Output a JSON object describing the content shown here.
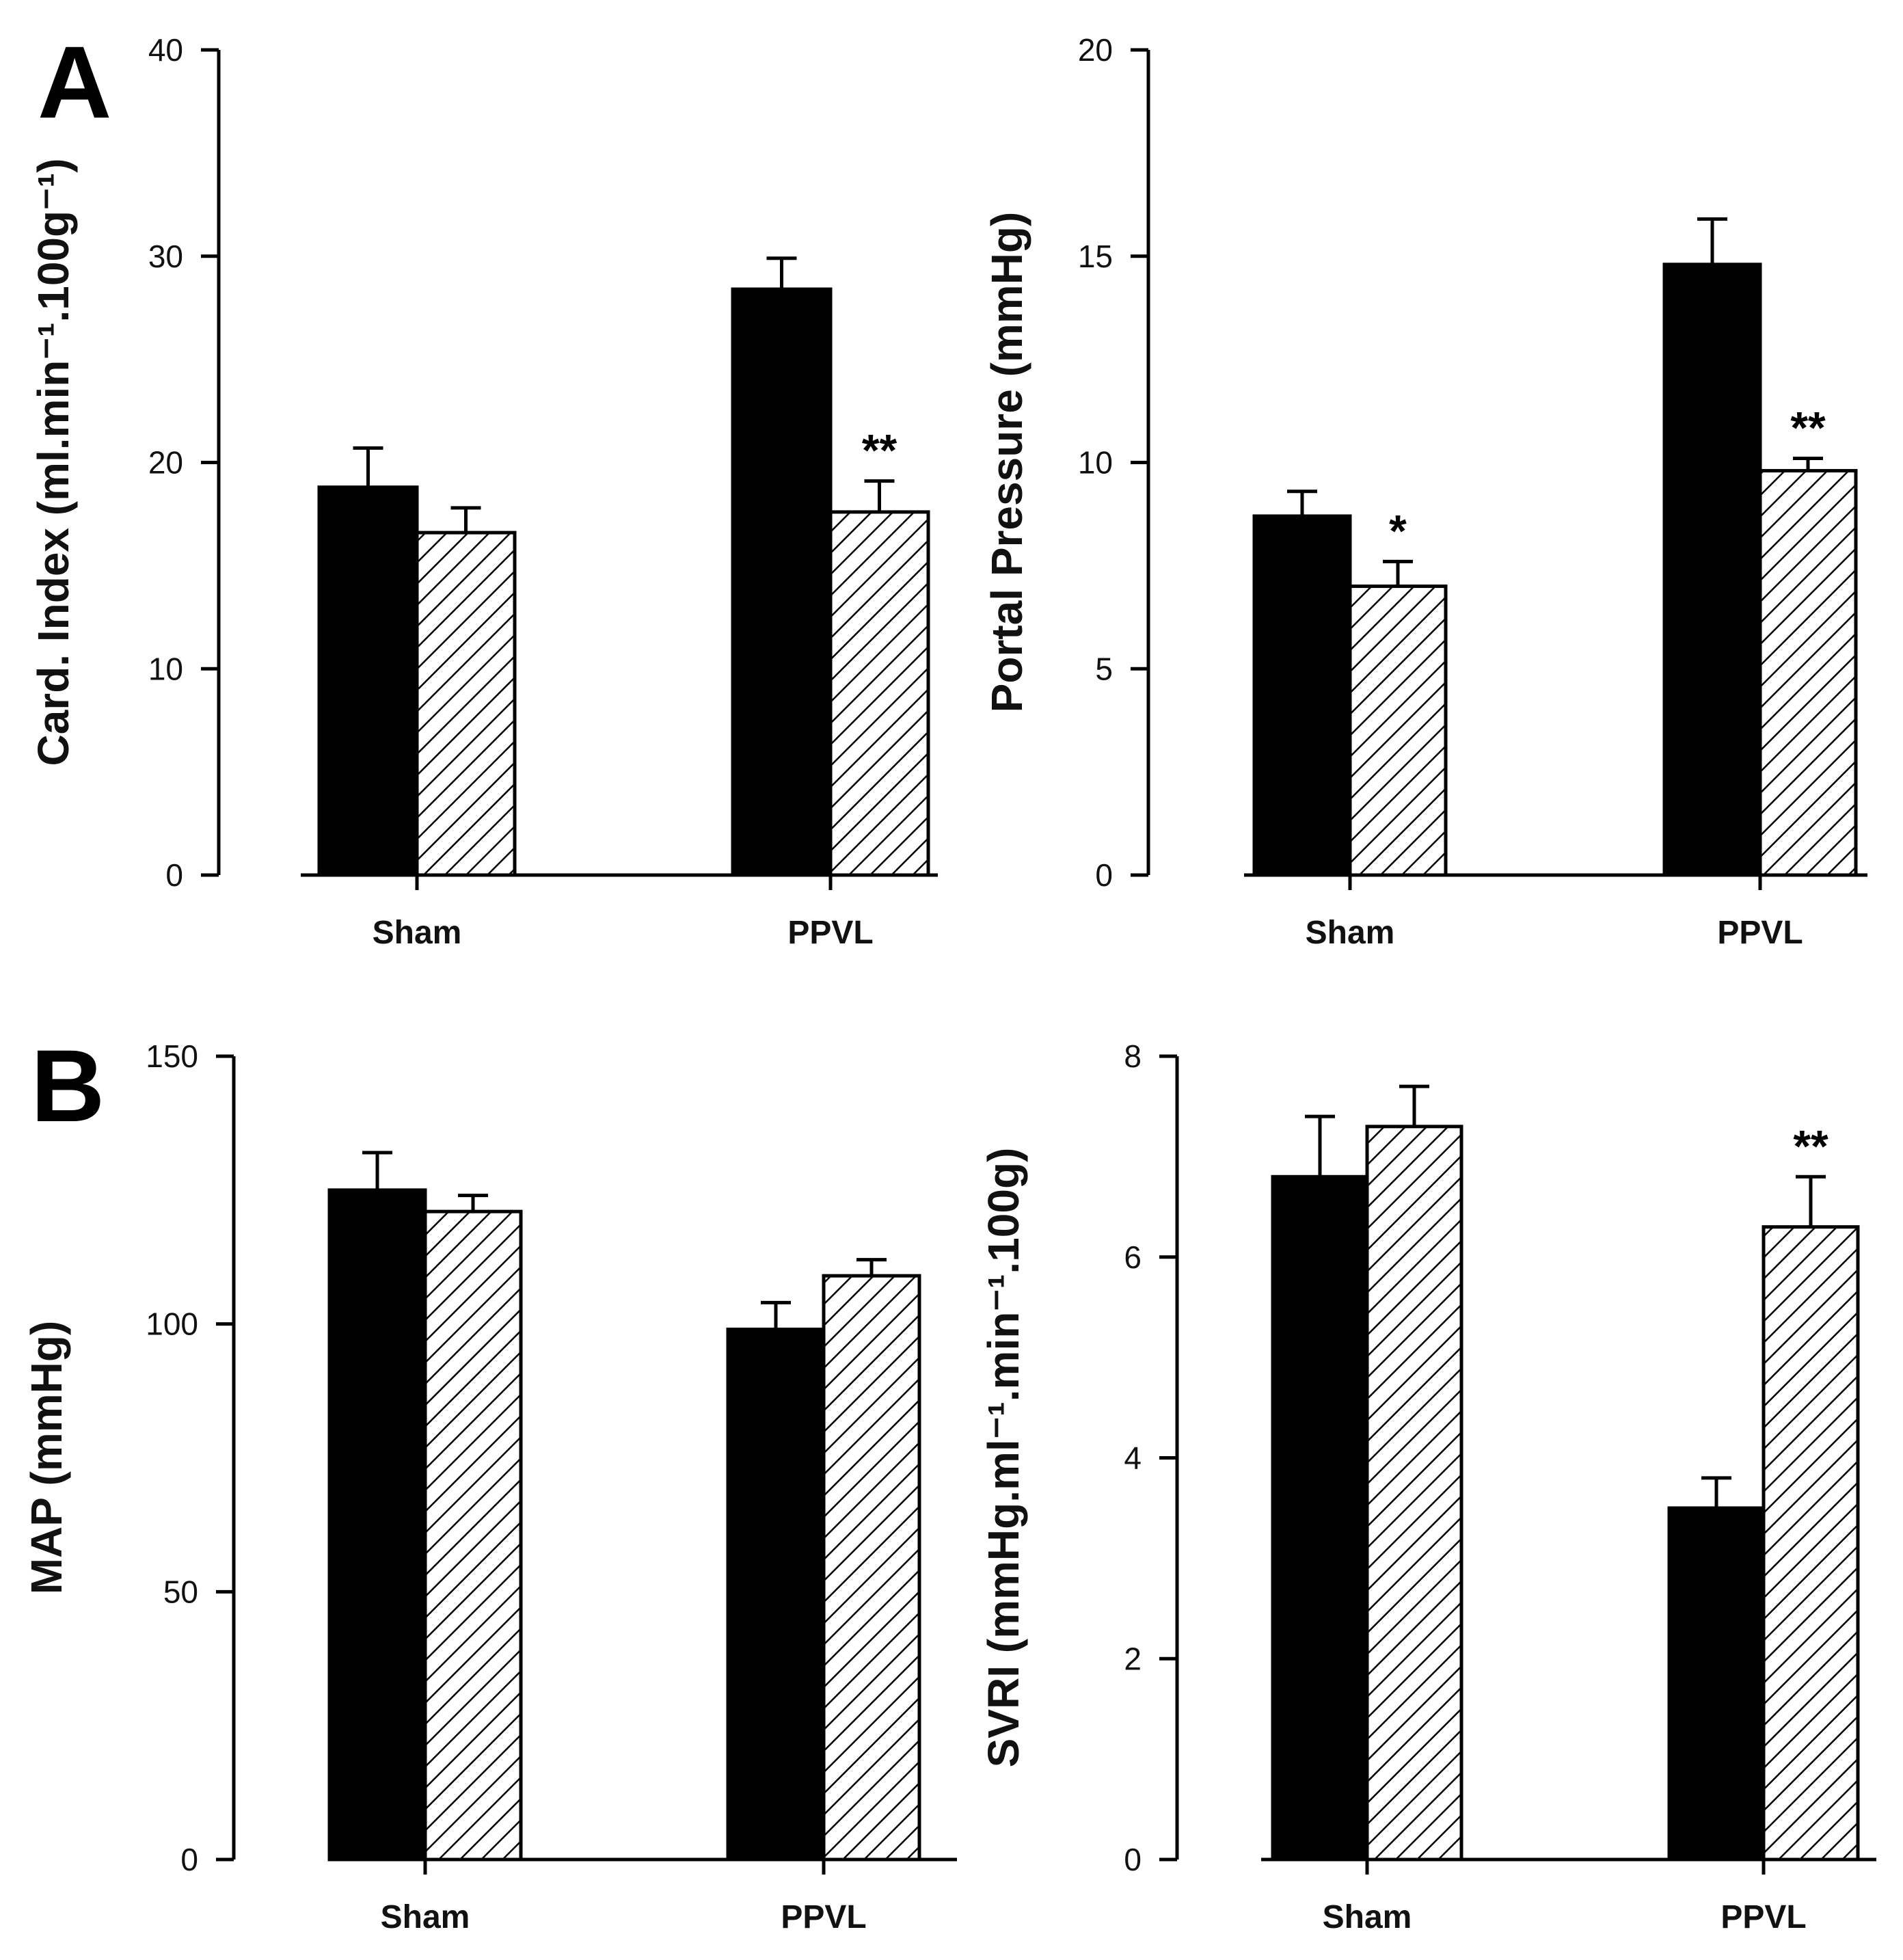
{
  "panel_labels": [
    "A",
    "B"
  ],
  "chart_data": [
    {
      "type": "bar",
      "panel": "A",
      "ylabel": "Card. Index (ml.min⁻¹.100g⁻¹)",
      "categories": [
        "Sham",
        "PPVL"
      ],
      "ylim": [
        0,
        40
      ],
      "yticks": [
        0,
        10,
        20,
        30,
        40
      ],
      "series": [
        {
          "name": "solid",
          "fill": "solid",
          "values": [
            18.8,
            28.4
          ],
          "errors": [
            1.9,
            1.5
          ]
        },
        {
          "name": "hatched",
          "fill": "hatched",
          "values": [
            16.6,
            17.6
          ],
          "errors": [
            1.2,
            1.5
          ]
        }
      ],
      "annotations": [
        {
          "category": "PPVL",
          "series": "hatched",
          "text": "**"
        }
      ]
    },
    {
      "type": "bar",
      "panel": "A",
      "ylabel": "Portal Pressure (mmHg)",
      "categories": [
        "Sham",
        "PPVL"
      ],
      "ylim": [
        0,
        20
      ],
      "yticks": [
        0,
        5,
        10,
        15,
        20
      ],
      "series": [
        {
          "name": "solid",
          "fill": "solid",
          "values": [
            8.7,
            14.8
          ],
          "errors": [
            0.6,
            1.1
          ]
        },
        {
          "name": "hatched",
          "fill": "hatched",
          "values": [
            7.0,
            9.8
          ],
          "errors": [
            0.6,
            0.3
          ]
        }
      ],
      "annotations": [
        {
          "category": "Sham",
          "series": "hatched",
          "text": "*"
        },
        {
          "category": "PPVL",
          "series": "hatched",
          "text": "**"
        }
      ]
    },
    {
      "type": "bar",
      "panel": "B",
      "ylabel": "MAP (mmHg)",
      "categories": [
        "Sham",
        "PPVL"
      ],
      "ylim": [
        0,
        150
      ],
      "yticks": [
        0,
        50,
        100,
        150
      ],
      "series": [
        {
          "name": "solid",
          "fill": "solid",
          "values": [
            125,
            99
          ],
          "errors": [
            7,
            5
          ]
        },
        {
          "name": "hatched",
          "fill": "hatched",
          "values": [
            121,
            109
          ],
          "errors": [
            3,
            3
          ]
        }
      ],
      "annotations": []
    },
    {
      "type": "bar",
      "panel": "B",
      "ylabel": "SVRI (mmHg.ml⁻¹.min⁻¹.100g)",
      "categories": [
        "Sham",
        "PPVL"
      ],
      "ylim": [
        0,
        8
      ],
      "yticks": [
        0,
        2,
        4,
        6,
        8
      ],
      "series": [
        {
          "name": "solid",
          "fill": "solid",
          "values": [
            6.8,
            3.5
          ],
          "errors": [
            0.6,
            0.3
          ]
        },
        {
          "name": "hatched",
          "fill": "hatched",
          "values": [
            7.3,
            6.3
          ],
          "errors": [
            0.4,
            0.5
          ]
        }
      ],
      "annotations": [
        {
          "category": "PPVL",
          "series": "hatched",
          "text": "**"
        }
      ]
    }
  ]
}
